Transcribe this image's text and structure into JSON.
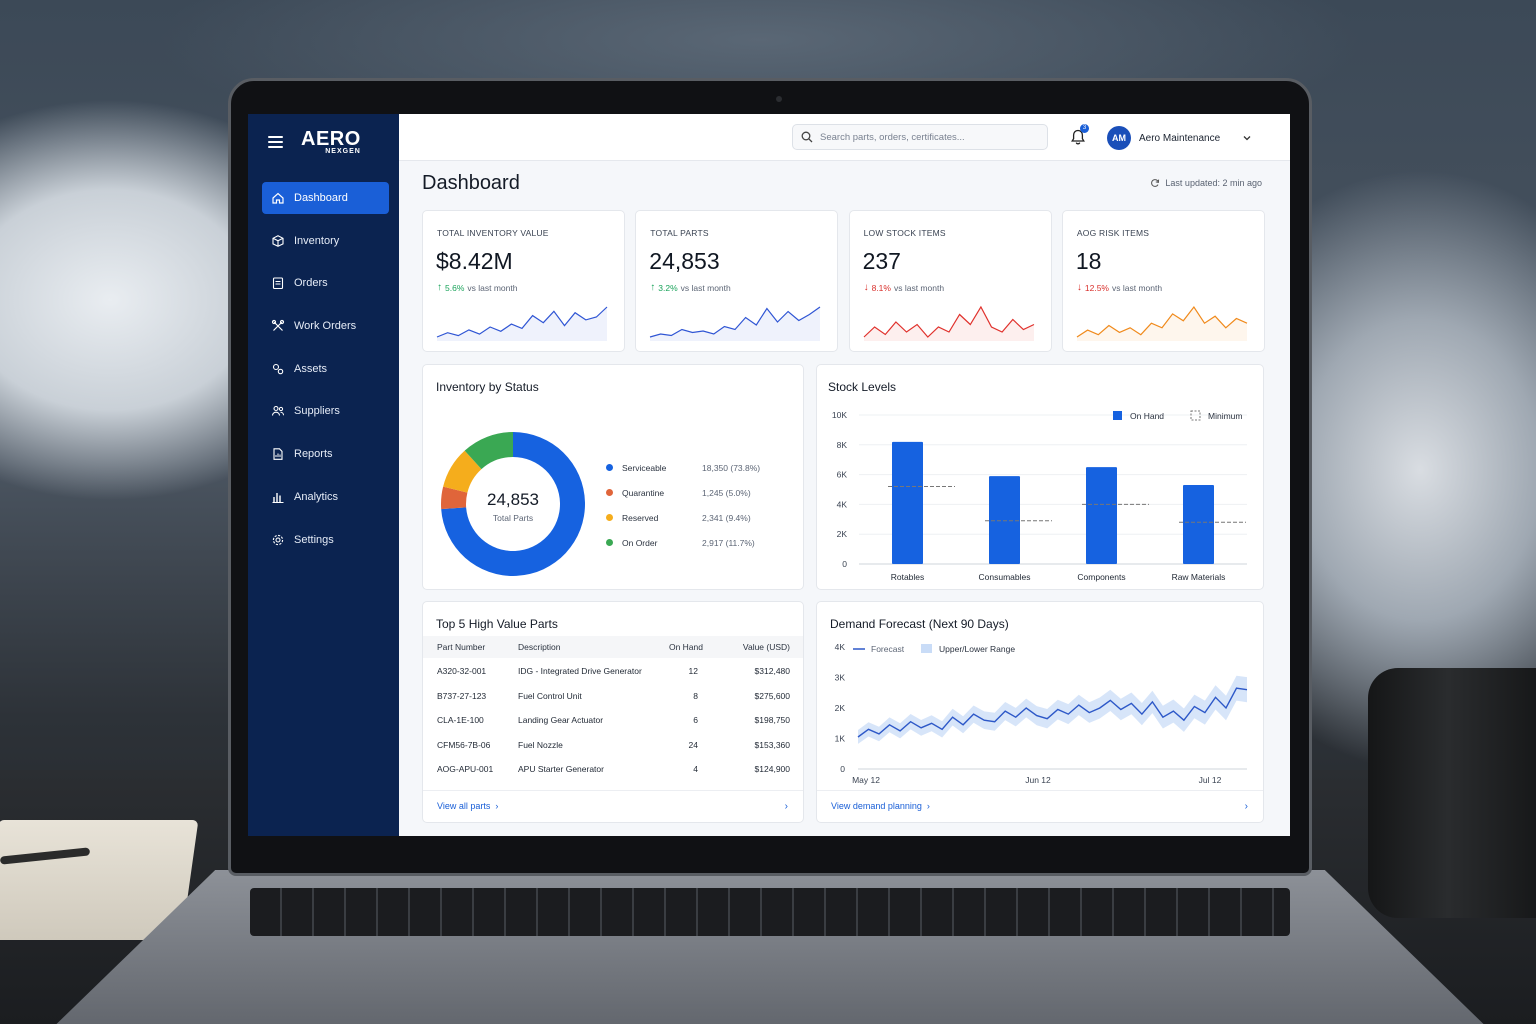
{
  "sidebar": {
    "brand": {
      "main": "AERO",
      "sub": "NEXGEN"
    },
    "items": [
      {
        "label": "Dashboard",
        "icon": "home-icon",
        "active": true
      },
      {
        "label": "Inventory",
        "icon": "box-icon"
      },
      {
        "label": "Orders",
        "icon": "clipboard-icon"
      },
      {
        "label": "Work Orders",
        "icon": "tools-icon"
      },
      {
        "label": "Assets",
        "icon": "gears-icon"
      },
      {
        "label": "Suppliers",
        "icon": "users-icon"
      },
      {
        "label": "Reports",
        "icon": "report-icon"
      },
      {
        "label": "Analytics",
        "icon": "bar-chart-icon"
      },
      {
        "label": "Settings",
        "icon": "gear-icon"
      }
    ]
  },
  "header": {
    "search_placeholder": "Search parts, orders, certificates...",
    "notification_count": "3",
    "user_initials": "AM",
    "user_name": "Aero Maintenance"
  },
  "page": {
    "title": "Dashboard",
    "last_updated": "Last updated: 2 min ago"
  },
  "kpis": [
    {
      "label": "TOTAL INVENTORY VALUE",
      "value": "$8.42M",
      "arrow": "↑",
      "pct": "5.6%",
      "tail": "vs last month",
      "trend": "up",
      "color": "#2f55d4",
      "spark": [
        12,
        15,
        13,
        17,
        14,
        19,
        16,
        21,
        18,
        27,
        22,
        30,
        20,
        29,
        24,
        26,
        33
      ]
    },
    {
      "label": "TOTAL PARTS",
      "value": "24,853",
      "arrow": "↑",
      "pct": "3.2%",
      "tail": "vs last month",
      "trend": "up",
      "color": "#2f55d4",
      "spark": [
        11,
        13,
        12,
        16,
        14,
        15,
        13,
        18,
        16,
        24,
        19,
        30,
        21,
        28,
        22,
        26,
        31
      ]
    },
    {
      "label": "LOW STOCK ITEMS",
      "value": "237",
      "arrow": "↓",
      "pct": "8.1%",
      "tail": "vs last month",
      "trend": "down",
      "color": "#e0312c",
      "spark": [
        18,
        22,
        19,
        24,
        20,
        23,
        18,
        22,
        20,
        27,
        23,
        30,
        22,
        20,
        25,
        21,
        23
      ]
    },
    {
      "label": "AOG RISK ITEMS",
      "value": "18",
      "arrow": "↓",
      "pct": "12.5%",
      "tail": "vs last month",
      "trend": "down",
      "color": "#f08a1c",
      "spark": [
        16,
        19,
        17,
        21,
        18,
        20,
        17,
        22,
        20,
        26,
        23,
        29,
        22,
        25,
        20,
        24,
        22
      ]
    }
  ],
  "inventory_status": {
    "title": "Inventory by Status",
    "total_value": "24,853",
    "total_label": "Total Parts",
    "segments": [
      {
        "name": "Serviceable",
        "value": "18,350 (73.8%)",
        "share": 73.8,
        "color": "#1662e0"
      },
      {
        "name": "Quarantine",
        "value": "1,245 (5.0%)",
        "share": 5.0,
        "color": "#e0653a"
      },
      {
        "name": "Reserved",
        "value": "2,341 (9.4%)",
        "share": 9.4,
        "color": "#f5ad1c"
      },
      {
        "name": "On Order",
        "value": "2,917 (11.7%)",
        "share": 11.7,
        "color": "#3aa853"
      }
    ],
    "extra_color": "#3d93ea"
  },
  "chart_data": [
    {
      "type": "bar",
      "title": "Stock Levels",
      "categories": [
        "Rotables",
        "Consumables",
        "Components",
        "Raw Materials"
      ],
      "series": [
        {
          "name": "On Hand",
          "values": [
            8200,
            5900,
            6500,
            5300
          ],
          "color": "#1662e0"
        },
        {
          "name": "Minimum",
          "values": [
            5200,
            2900,
            4000,
            2800
          ],
          "color": "#777777"
        }
      ],
      "yticks": [
        "0",
        "2K",
        "4K",
        "6K",
        "8K",
        "10K"
      ],
      "ylim": [
        0,
        10000
      ],
      "legend": "top-right"
    },
    {
      "type": "line",
      "title": "Demand Forecast (Next 90 Days)",
      "series_label": "Forecast",
      "band_label": "Upper/Lower Range",
      "xticks": [
        "May 12",
        "Jun 12",
        "Jul 12"
      ],
      "yticks": [
        "0",
        "1K",
        "2K",
        "3K",
        "4K"
      ],
      "ylim": [
        0,
        4000
      ],
      "forecast": [
        1050,
        1300,
        1150,
        1450,
        1250,
        1550,
        1350,
        1500,
        1300,
        1700,
        1450,
        1800,
        1600,
        1550,
        1900,
        1700,
        2000,
        1750,
        1650,
        1950,
        1800,
        2100,
        1850,
        2000,
        2250,
        1950,
        2150,
        1800,
        2200,
        1700,
        1900,
        1600,
        2050,
        1850,
        2350,
        2000,
        2650,
        2600
      ],
      "band": 380,
      "color": "#2d58c8"
    }
  ],
  "top_parts": {
    "title": "Top 5 High Value Parts",
    "headers": {
      "part": "Part Number",
      "desc": "Description",
      "qty": "On Hand",
      "val": "Value (USD)"
    },
    "rows": [
      {
        "part": "A320-32-001",
        "desc": "IDG - Integrated Drive Generator",
        "qty": "12",
        "val": "$312,480"
      },
      {
        "part": "B737-27-123",
        "desc": "Fuel Control Unit",
        "qty": "8",
        "val": "$275,600"
      },
      {
        "part": "CLA-1E-100",
        "desc": "Landing Gear Actuator",
        "qty": "6",
        "val": "$198,750"
      },
      {
        "part": "CFM56-7B-06",
        "desc": "Fuel Nozzle",
        "qty": "24",
        "val": "$153,360"
      },
      {
        "part": "AOG-APU-001",
        "desc": "APU Starter Generator",
        "qty": "4",
        "val": "$124,900"
      }
    ],
    "footer_link": "View all parts"
  },
  "forecast_footer_link": "View demand planning"
}
